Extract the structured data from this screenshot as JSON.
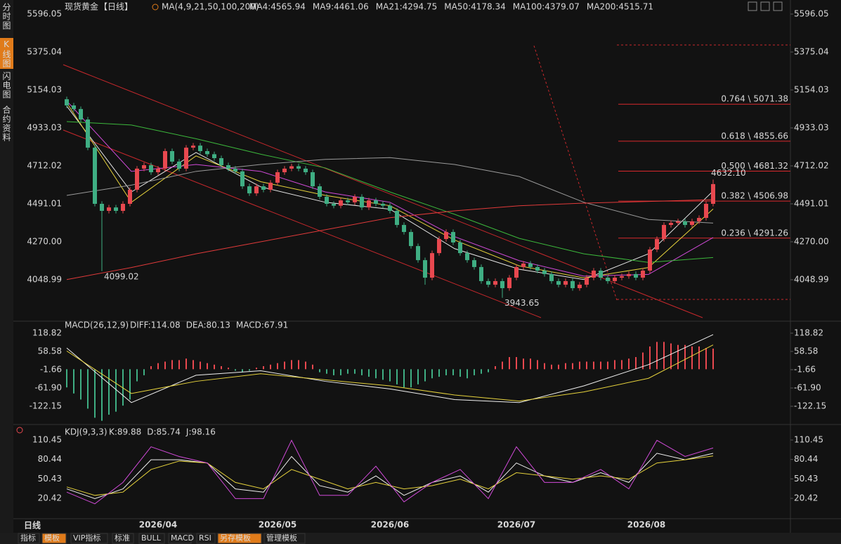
{
  "sidebar": [
    "分时图",
    "K线图",
    "闪电图",
    "合约资料"
  ],
  "header": {
    "symbol": "现货黄金",
    "period": "【日线】",
    "ma_title": "MA(4,9,21,50,100,200)"
  },
  "price": {
    "ylim": [
      3815.7,
      5628.8
    ],
    "yticks": [
      5596.05,
      5375.04,
      5154.03,
      4933.03,
      4712.02,
      4491.01,
      {
        "value": 4270,
        "label": "4270.00"
      },
      4048.99
    ],
    "up_color": "#e8484f",
    "down_color": "#3fae83",
    "candles": [
      [
        5100,
        5115,
        5049,
        5064
      ],
      [
        5064,
        5079,
        5028,
        5043
      ],
      [
        5043,
        5058,
        4967,
        4982
      ],
      [
        4982,
        4997,
        4803,
        4818
      ],
      [
        4818,
        4833,
        4476,
        4491
      ],
      [
        4491,
        4506,
        4099.02,
        4450
      ],
      [
        4450,
        4485,
        4435,
        4470
      ],
      [
        4470,
        4485,
        4435,
        4450
      ],
      [
        4450,
        4506,
        4435,
        4491
      ],
      [
        4491,
        4588,
        4476,
        4573
      ],
      [
        4573,
        4711,
        4558,
        4696
      ],
      [
        4696,
        4731,
        4681,
        4716
      ],
      [
        4716,
        4731,
        4660,
        4675
      ],
      [
        4675,
        4711,
        4660,
        4696
      ],
      [
        4696,
        4813,
        4681,
        4798
      ],
      [
        4798,
        4813,
        4722,
        4737
      ],
      [
        4737,
        4752,
        4681,
        4696
      ],
      [
        4696,
        4833,
        4681,
        4818
      ],
      [
        4818,
        4845,
        4803,
        4830
      ],
      [
        4830,
        4845,
        4783,
        4798
      ],
      [
        4798,
        4813,
        4765,
        4780
      ],
      [
        4780,
        4795,
        4742,
        4757
      ],
      [
        4757,
        4772,
        4701,
        4716
      ],
      [
        4716,
        4731,
        4681,
        4696
      ],
      [
        4696,
        4711,
        4665,
        4680
      ],
      [
        4680,
        4695,
        4578,
        4593
      ],
      [
        4593,
        4608,
        4537,
        4552
      ],
      [
        4552,
        4608,
        4537,
        4593
      ],
      [
        4593,
        4608,
        4558,
        4573
      ],
      [
        4573,
        4629,
        4558,
        4614
      ],
      [
        4614,
        4690,
        4599,
        4675
      ],
      [
        4675,
        4711,
        4660,
        4696
      ],
      [
        4696,
        4725,
        4681,
        4710
      ],
      [
        4710,
        4725,
        4681,
        4696
      ],
      [
        4696,
        4711,
        4660,
        4675
      ],
      [
        4675,
        4690,
        4578,
        4593
      ],
      [
        4593,
        4608,
        4517,
        4532
      ],
      [
        4532,
        4547,
        4476,
        4491
      ],
      [
        4491,
        4506,
        4465,
        4480
      ],
      [
        4480,
        4526,
        4465,
        4511
      ],
      [
        4511,
        4526,
        4485,
        4500
      ],
      [
        4500,
        4547,
        4485,
        4532
      ],
      [
        4532,
        4547,
        4455,
        4470
      ],
      [
        4470,
        4526,
        4455,
        4511
      ],
      [
        4511,
        4526,
        4476,
        4491
      ],
      [
        4491,
        4506,
        4465,
        4480
      ],
      [
        4480,
        4495,
        4435,
        4450
      ],
      [
        4450,
        4465,
        4353,
        4368
      ],
      [
        4368,
        4383,
        4312,
        4327
      ],
      [
        4327,
        4342,
        4230,
        4245
      ],
      [
        4245,
        4260,
        4148,
        4163
      ],
      [
        4163,
        4178,
        4020,
        4061
      ],
      [
        4061,
        4219,
        4046,
        4204
      ],
      [
        4204,
        4301,
        4189,
        4286
      ],
      [
        4286,
        4342,
        4271,
        4327
      ],
      [
        4327,
        4342,
        4251,
        4266
      ],
      [
        4266,
        4281,
        4189,
        4204
      ],
      [
        4204,
        4219,
        4148,
        4163
      ],
      [
        4163,
        4178,
        4108,
        4123
      ],
      [
        4123,
        4138,
        4026,
        4041
      ],
      [
        4041,
        4056,
        4005,
        4020
      ],
      [
        4020,
        4056,
        4005,
        4041
      ],
      [
        4041,
        4056,
        3943.65,
        4000
      ],
      [
        4000,
        4076,
        3985,
        4061
      ],
      [
        4061,
        4138,
        4046,
        4123
      ],
      [
        4123,
        4158,
        4108,
        4143
      ],
      [
        4143,
        4158,
        4108,
        4123
      ],
      [
        4123,
        4138,
        4087,
        4102
      ],
      [
        4102,
        4117,
        4067,
        4082
      ],
      [
        4082,
        4097,
        4026,
        4041
      ],
      [
        4041,
        4056,
        4005,
        4020
      ],
      [
        4020,
        4056,
        4005,
        4041
      ],
      [
        4041,
        4056,
        3985,
        4000
      ],
      [
        4000,
        4035,
        3985,
        4020
      ],
      [
        4020,
        4076,
        4005,
        4061
      ],
      [
        4061,
        4117,
        4046,
        4102
      ],
      [
        4102,
        4117,
        4046,
        4061
      ],
      [
        4061,
        4076,
        4026,
        4041
      ],
      [
        4041,
        4076,
        4026,
        4061
      ],
      [
        4061,
        4085,
        4046,
        4070
      ],
      [
        4070,
        4097,
        4055,
        4082
      ],
      [
        4082,
        4097,
        4046,
        4061
      ],
      [
        4061,
        4117,
        4046,
        4102
      ],
      [
        4102,
        4240,
        4087,
        4225
      ],
      [
        4225,
        4301,
        4210,
        4286
      ],
      [
        4286,
        4383,
        4271,
        4368
      ],
      [
        4368,
        4395,
        4353,
        4380
      ],
      [
        4380,
        4404,
        4365,
        4389
      ],
      [
        4389,
        4404,
        4353,
        4368
      ],
      [
        4368,
        4404,
        4353,
        4389
      ],
      [
        4389,
        4424,
        4374,
        4409
      ],
      [
        4409,
        4506,
        4394,
        4491
      ],
      [
        4491,
        4632.1,
        4476,
        4606
      ]
    ],
    "ma": [
      {
        "name": "MA4:4565.94",
        "color": "#e8e8e8",
        "values": [
          5060,
          4560,
          4790,
          4590,
          4500,
          4460,
          4230,
          4110,
          4050,
          4200,
          4565.94
        ]
      },
      {
        "name": "MA9:4461.06",
        "color": "#e6d23c",
        "values": [
          5080,
          4500,
          4770,
          4620,
          4540,
          4480,
          4280,
          4130,
          4060,
          4120,
          4461.06
        ]
      },
      {
        "name": "MA21:4294.75",
        "color": "#d04ad8",
        "values": [
          5090,
          4680,
          4720,
          4680,
          4560,
          4500,
          4300,
          4160,
          4070,
          4080,
          4294.75
        ]
      },
      {
        "name": "MA50:4178.34",
        "color": "#3cb83c",
        "values": [
          4970,
          4950,
          4870,
          4780,
          4700,
          4560,
          4430,
          4290,
          4200,
          4150,
          4178.34
        ]
      },
      {
        "name": "MA100:4379.07",
        "color": "#9a9a9a",
        "values": [
          4540,
          4600,
          4680,
          4720,
          4750,
          4760,
          4720,
          4650,
          4500,
          4400,
          4379.07
        ]
      },
      {
        "name": "MA200:4515.71",
        "color": "#e03a3a",
        "values": [
          4050,
          4120,
          4200,
          4270,
          4340,
          4410,
          4450,
          4480,
          4495,
          4505,
          4515.71
        ]
      }
    ],
    "fib": [
      {
        "value": 5071.38,
        "label": "0.764 \\ 5071.38"
      },
      {
        "value": 4855.66,
        "label": "0.618 \\ 4855.66"
      },
      {
        "value": 4681.32,
        "label": "0.500 \\ 4681.32"
      },
      {
        "value": 4506.98,
        "label": "0.382 \\ 4506.98"
      },
      {
        "value": 4291.26,
        "label": "0.236 \\ 4291.26"
      }
    ],
    "high_label": {
      "value": 4632.1,
      "label": "4632.10"
    }
  },
  "macd": {
    "title": "MACD(26,12,9)",
    "ylim": [
      -180,
      146.6
    ],
    "yticks": [
      118.82,
      58.58,
      -1.66,
      {
        "value": -61.9,
        "label": "-61.90"
      },
      -122.15
    ],
    "histogram": {
      "name": "MACD:67.91",
      "color": "#d04ad8",
      "up_color": "#e8484f",
      "down_color": "#3fae83",
      "values": [
        -60,
        -80,
        -100,
        -130,
        -160,
        -170,
        -150,
        -140,
        -120,
        -100,
        -40,
        -20,
        10,
        20,
        25,
        30,
        30,
        35,
        30,
        25,
        20,
        15,
        10,
        5,
        -5,
        -10,
        -5,
        5,
        10,
        15,
        20,
        25,
        30,
        30,
        25,
        15,
        -10,
        -15,
        -20,
        -20,
        -15,
        -15,
        -20,
        -25,
        -30,
        -35,
        -40,
        -50,
        -60,
        -60,
        -50,
        -40,
        -30,
        -25,
        -20,
        -20,
        -25,
        -30,
        -20,
        -15,
        -10,
        10,
        25,
        40,
        40,
        35,
        35,
        30,
        20,
        15,
        15,
        20,
        20,
        25,
        25,
        25,
        25,
        25,
        30,
        30,
        35,
        40,
        55,
        75,
        90,
        90,
        85,
        80,
        80,
        75,
        75,
        70,
        67.91
      ]
    },
    "series": [
      {
        "name": "DIFF:114.08",
        "color": "#f0f0f0",
        "values": [
          70,
          -110,
          -20,
          -5,
          -40,
          -65,
          -100,
          -110,
          -55,
          15,
          114.08
        ]
      },
      {
        "name": "DEA:80.13",
        "color": "#e6d23c",
        "values": [
          60,
          -80,
          -40,
          -15,
          -35,
          -55,
          -85,
          -105,
          -75,
          -30,
          80.13
        ]
      }
    ]
  },
  "kdj": {
    "title": "KDJ(9,3,3)",
    "ylim": [
      -11,
      130
    ],
    "yticks": [
      110.45,
      80.44,
      50.43,
      20.42
    ],
    "series": [
      {
        "name": "K:89.88",
        "color": "#f0f0f0",
        "values": [
          35,
          20,
          35,
          80,
          80,
          75,
          35,
          30,
          85,
          40,
          30,
          55,
          25,
          45,
          55,
          30,
          75,
          55,
          45,
          60,
          45,
          90,
          80,
          89.88
        ]
      },
      {
        "name": "D:85.74",
        "color": "#e6d23c",
        "values": [
          38,
          25,
          30,
          65,
          78,
          75,
          45,
          35,
          65,
          50,
          35,
          45,
          35,
          40,
          50,
          35,
          60,
          55,
          50,
          55,
          50,
          75,
          80,
          85.74
        ]
      },
      {
        "name": "J:98.16",
        "color": "#d04ad8",
        "values": [
          30,
          12,
          45,
          100,
          85,
          75,
          20,
          20,
          110,
          25,
          25,
          70,
          15,
          45,
          65,
          20,
          100,
          45,
          45,
          65,
          35,
          110,
          85,
          98.16
        ]
      }
    ]
  },
  "dates": [
    "2026/04",
    "2026/05",
    "2026/06",
    "2026/07",
    "2026/08"
  ],
  "period_label": "日线",
  "toolbar": [
    "指标",
    "模板",
    "VIP指标",
    "标准",
    "BULL",
    "MACD",
    "RSI",
    "另存模板",
    "管理模板"
  ]
}
